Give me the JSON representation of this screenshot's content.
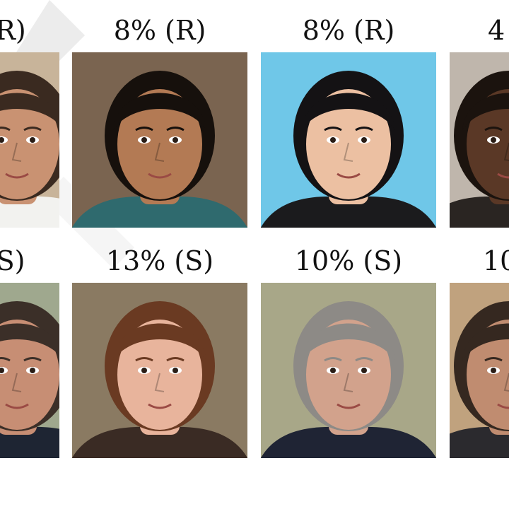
{
  "rows": [
    {
      "labels": [
        "R)",
        "8% (R)",
        "8% (R)",
        "4"
      ],
      "faces": [
        {
          "description": "man-short-dark-hair-beard",
          "bg": "#c8b49a",
          "skin": "#c99272",
          "hair": "#3a2a20",
          "cloth": "#f2f2ef"
        },
        {
          "description": "woman-dark-hair-pulled-back",
          "bg": "#7a6450",
          "skin": "#b37a54",
          "hair": "#16100c",
          "cloth": "#2f6a6e"
        },
        {
          "description": "woman-long-black-hair-smiling",
          "bg": "#6fc7e8",
          "skin": "#ecc0a2",
          "hair": "#141214",
          "cloth": "#1b1b1d"
        },
        {
          "description": "man-dark-skin",
          "bg": "#bfb6ac",
          "skin": "#5a3826",
          "hair": "#1b130e",
          "cloth": "#2a2522"
        }
      ]
    },
    {
      "labels": [
        "S)",
        "13% (S)",
        "10% (S)",
        "10"
      ],
      "faces": [
        {
          "description": "man-short-hair-stubble",
          "bg": "#9fa88e",
          "skin": "#c78e74",
          "hair": "#3b2f28",
          "cloth": "#1e2533"
        },
        {
          "description": "woman-long-auburn-hair-smiling",
          "bg": "#8a7a62",
          "skin": "#e8b49c",
          "hair": "#6a3a22",
          "cloth": "#3a2b24"
        },
        {
          "description": "man-grey-short-hair",
          "bg": "#a8a788",
          "skin": "#d2a28c",
          "hair": "#8d8a86",
          "cloth": "#1f2434"
        },
        {
          "description": "man-dark-hair-stubble",
          "bg": "#c0a27e",
          "skin": "#c08c70",
          "hair": "#352820",
          "cloth": "#2b2a2e"
        }
      ]
    }
  ]
}
